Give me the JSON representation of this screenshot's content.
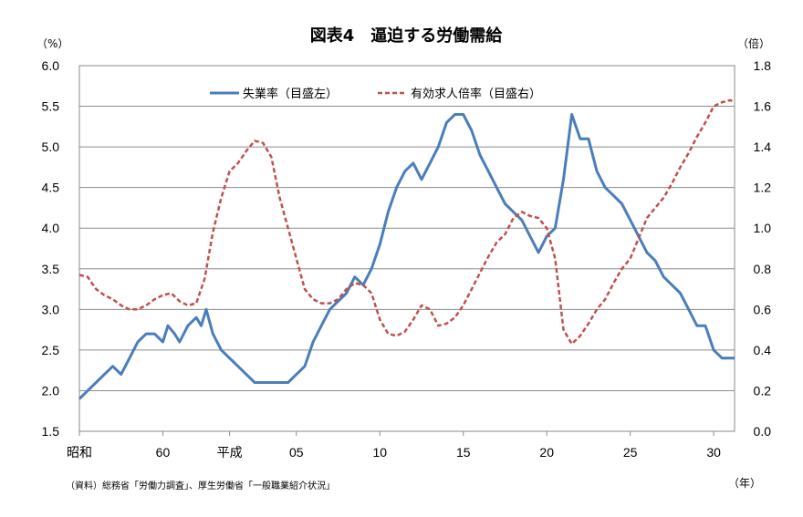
{
  "chart_data": {
    "type": "line",
    "title": "図表4　逼迫する労働需給",
    "y_left_unit": "（%）",
    "y_right_unit": "（倍）",
    "x_unit": "（年）",
    "source_note": "（資料）総務省「労働力調査」、厚生労働省「一般職業紹介状況」",
    "y_left_lim": [
      1.5,
      6.0
    ],
    "y_right_lim": [
      0.0,
      1.8
    ],
    "y_left_ticks": [
      "1.5",
      "2.0",
      "2.5",
      "3.0",
      "3.5",
      "4.0",
      "4.5",
      "5.0",
      "5.5",
      "6.0"
    ],
    "y_right_ticks": [
      "0.0",
      "0.2",
      "0.4",
      "0.6",
      "0.8",
      "1.0",
      "1.2",
      "1.4",
      "1.6",
      "1.8"
    ],
    "x_range": [
      1980,
      2019.25
    ],
    "x_ticks": [
      {
        "x": 1980,
        "label": "昭和"
      },
      {
        "x": 1985,
        "label": "60"
      },
      {
        "x": 1989,
        "label": "平成"
      },
      {
        "x": 1993,
        "label": "05"
      },
      {
        "x": 1998,
        "label": "10"
      },
      {
        "x": 2003,
        "label": "15"
      },
      {
        "x": 2008,
        "label": "20"
      },
      {
        "x": 2013,
        "label": "25"
      },
      {
        "x": 2018,
        "label": "30"
      }
    ],
    "grid": true,
    "legend_position": "top-center",
    "series": [
      {
        "name": "失業率（目盛左）",
        "axis": "left",
        "color": "#4a7ebb",
        "style": "solid",
        "points": [
          [
            1980,
            1.9
          ],
          [
            1980.5,
            2.0
          ],
          [
            1981,
            2.1
          ],
          [
            1981.5,
            2.2
          ],
          [
            1982,
            2.3
          ],
          [
            1982.5,
            2.2
          ],
          [
            1983,
            2.4
          ],
          [
            1983.5,
            2.6
          ],
          [
            1984,
            2.7
          ],
          [
            1984.5,
            2.7
          ],
          [
            1985,
            2.6
          ],
          [
            1985.3,
            2.8
          ],
          [
            1985.7,
            2.7
          ],
          [
            1986,
            2.6
          ],
          [
            1986.5,
            2.8
          ],
          [
            1987,
            2.9
          ],
          [
            1987.3,
            2.8
          ],
          [
            1987.6,
            3.0
          ],
          [
            1988,
            2.7
          ],
          [
            1988.5,
            2.5
          ],
          [
            1989,
            2.4
          ],
          [
            1989.5,
            2.3
          ],
          [
            1990,
            2.2
          ],
          [
            1990.5,
            2.1
          ],
          [
            1991,
            2.1
          ],
          [
            1991.5,
            2.1
          ],
          [
            1992,
            2.1
          ],
          [
            1992.5,
            2.1
          ],
          [
            1993,
            2.2
          ],
          [
            1993.5,
            2.3
          ],
          [
            1994,
            2.6
          ],
          [
            1994.5,
            2.8
          ],
          [
            1995,
            3.0
          ],
          [
            1995.5,
            3.1
          ],
          [
            1996,
            3.2
          ],
          [
            1996.5,
            3.4
          ],
          [
            1997,
            3.3
          ],
          [
            1997.5,
            3.5
          ],
          [
            1998,
            3.8
          ],
          [
            1998.5,
            4.2
          ],
          [
            1999,
            4.5
          ],
          [
            1999.5,
            4.7
          ],
          [
            2000,
            4.8
          ],
          [
            2000.5,
            4.6
          ],
          [
            2001,
            4.8
          ],
          [
            2001.5,
            5.0
          ],
          [
            2002,
            5.3
          ],
          [
            2002.5,
            5.4
          ],
          [
            2003,
            5.4
          ],
          [
            2003.5,
            5.2
          ],
          [
            2004,
            4.9
          ],
          [
            2004.5,
            4.7
          ],
          [
            2005,
            4.5
          ],
          [
            2005.5,
            4.3
          ],
          [
            2006,
            4.2
          ],
          [
            2006.5,
            4.1
          ],
          [
            2007,
            3.9
          ],
          [
            2007.5,
            3.7
          ],
          [
            2008,
            3.9
          ],
          [
            2008.5,
            4.0
          ],
          [
            2009,
            4.6
          ],
          [
            2009.5,
            5.4
          ],
          [
            2010,
            5.1
          ],
          [
            2010.5,
            5.1
          ],
          [
            2011,
            4.7
          ],
          [
            2011.5,
            4.5
          ],
          [
            2012,
            4.4
          ],
          [
            2012.5,
            4.3
          ],
          [
            2013,
            4.1
          ],
          [
            2013.5,
            3.9
          ],
          [
            2014,
            3.7
          ],
          [
            2014.5,
            3.6
          ],
          [
            2015,
            3.4
          ],
          [
            2015.5,
            3.3
          ],
          [
            2016,
            3.2
          ],
          [
            2016.5,
            3.0
          ],
          [
            2017,
            2.8
          ],
          [
            2017.5,
            2.8
          ],
          [
            2018,
            2.5
          ],
          [
            2018.5,
            2.4
          ],
          [
            2019,
            2.4
          ],
          [
            2019.25,
            2.4
          ]
        ]
      },
      {
        "name": "有効求人倍率（目盛右）",
        "axis": "right",
        "color": "#c0504d",
        "style": "dashed",
        "points": [
          [
            1980,
            0.77
          ],
          [
            1980.5,
            0.76
          ],
          [
            1981,
            0.7
          ],
          [
            1981.5,
            0.67
          ],
          [
            1982,
            0.65
          ],
          [
            1982.5,
            0.62
          ],
          [
            1983,
            0.6
          ],
          [
            1983.5,
            0.6
          ],
          [
            1984,
            0.62
          ],
          [
            1984.5,
            0.65
          ],
          [
            1985,
            0.67
          ],
          [
            1985.5,
            0.68
          ],
          [
            1986,
            0.64
          ],
          [
            1986.5,
            0.62
          ],
          [
            1987,
            0.63
          ],
          [
            1987.5,
            0.75
          ],
          [
            1988,
            0.98
          ],
          [
            1988.5,
            1.15
          ],
          [
            1989,
            1.28
          ],
          [
            1989.5,
            1.32
          ],
          [
            1990,
            1.38
          ],
          [
            1990.5,
            1.43
          ],
          [
            1991,
            1.42
          ],
          [
            1991.5,
            1.35
          ],
          [
            1992,
            1.15
          ],
          [
            1992.5,
            1.0
          ],
          [
            1993,
            0.85
          ],
          [
            1993.5,
            0.7
          ],
          [
            1994,
            0.65
          ],
          [
            1994.5,
            0.63
          ],
          [
            1995,
            0.63
          ],
          [
            1995.5,
            0.65
          ],
          [
            1996,
            0.7
          ],
          [
            1996.5,
            0.73
          ],
          [
            1997,
            0.72
          ],
          [
            1997.5,
            0.68
          ],
          [
            1998,
            0.55
          ],
          [
            1998.5,
            0.48
          ],
          [
            1999,
            0.47
          ],
          [
            1999.5,
            0.49
          ],
          [
            2000,
            0.55
          ],
          [
            2000.5,
            0.62
          ],
          [
            2001,
            0.6
          ],
          [
            2001.5,
            0.52
          ],
          [
            2002,
            0.53
          ],
          [
            2002.5,
            0.56
          ],
          [
            2003,
            0.62
          ],
          [
            2003.5,
            0.7
          ],
          [
            2004,
            0.78
          ],
          [
            2004.5,
            0.86
          ],
          [
            2005,
            0.93
          ],
          [
            2005.5,
            0.97
          ],
          [
            2006,
            1.05
          ],
          [
            2006.5,
            1.08
          ],
          [
            2007,
            1.06
          ],
          [
            2007.5,
            1.05
          ],
          [
            2008,
            1.0
          ],
          [
            2008.5,
            0.85
          ],
          [
            2009,
            0.5
          ],
          [
            2009.5,
            0.43
          ],
          [
            2010,
            0.47
          ],
          [
            2010.5,
            0.53
          ],
          [
            2011,
            0.6
          ],
          [
            2011.5,
            0.65
          ],
          [
            2012,
            0.73
          ],
          [
            2012.5,
            0.8
          ],
          [
            2013,
            0.85
          ],
          [
            2013.5,
            0.95
          ],
          [
            2014,
            1.05
          ],
          [
            2014.5,
            1.1
          ],
          [
            2015,
            1.15
          ],
          [
            2015.5,
            1.22
          ],
          [
            2016,
            1.3
          ],
          [
            2016.5,
            1.37
          ],
          [
            2017,
            1.45
          ],
          [
            2017.5,
            1.52
          ],
          [
            2018,
            1.6
          ],
          [
            2018.5,
            1.62
          ],
          [
            2019,
            1.63
          ],
          [
            2019.25,
            1.62
          ]
        ]
      }
    ]
  }
}
